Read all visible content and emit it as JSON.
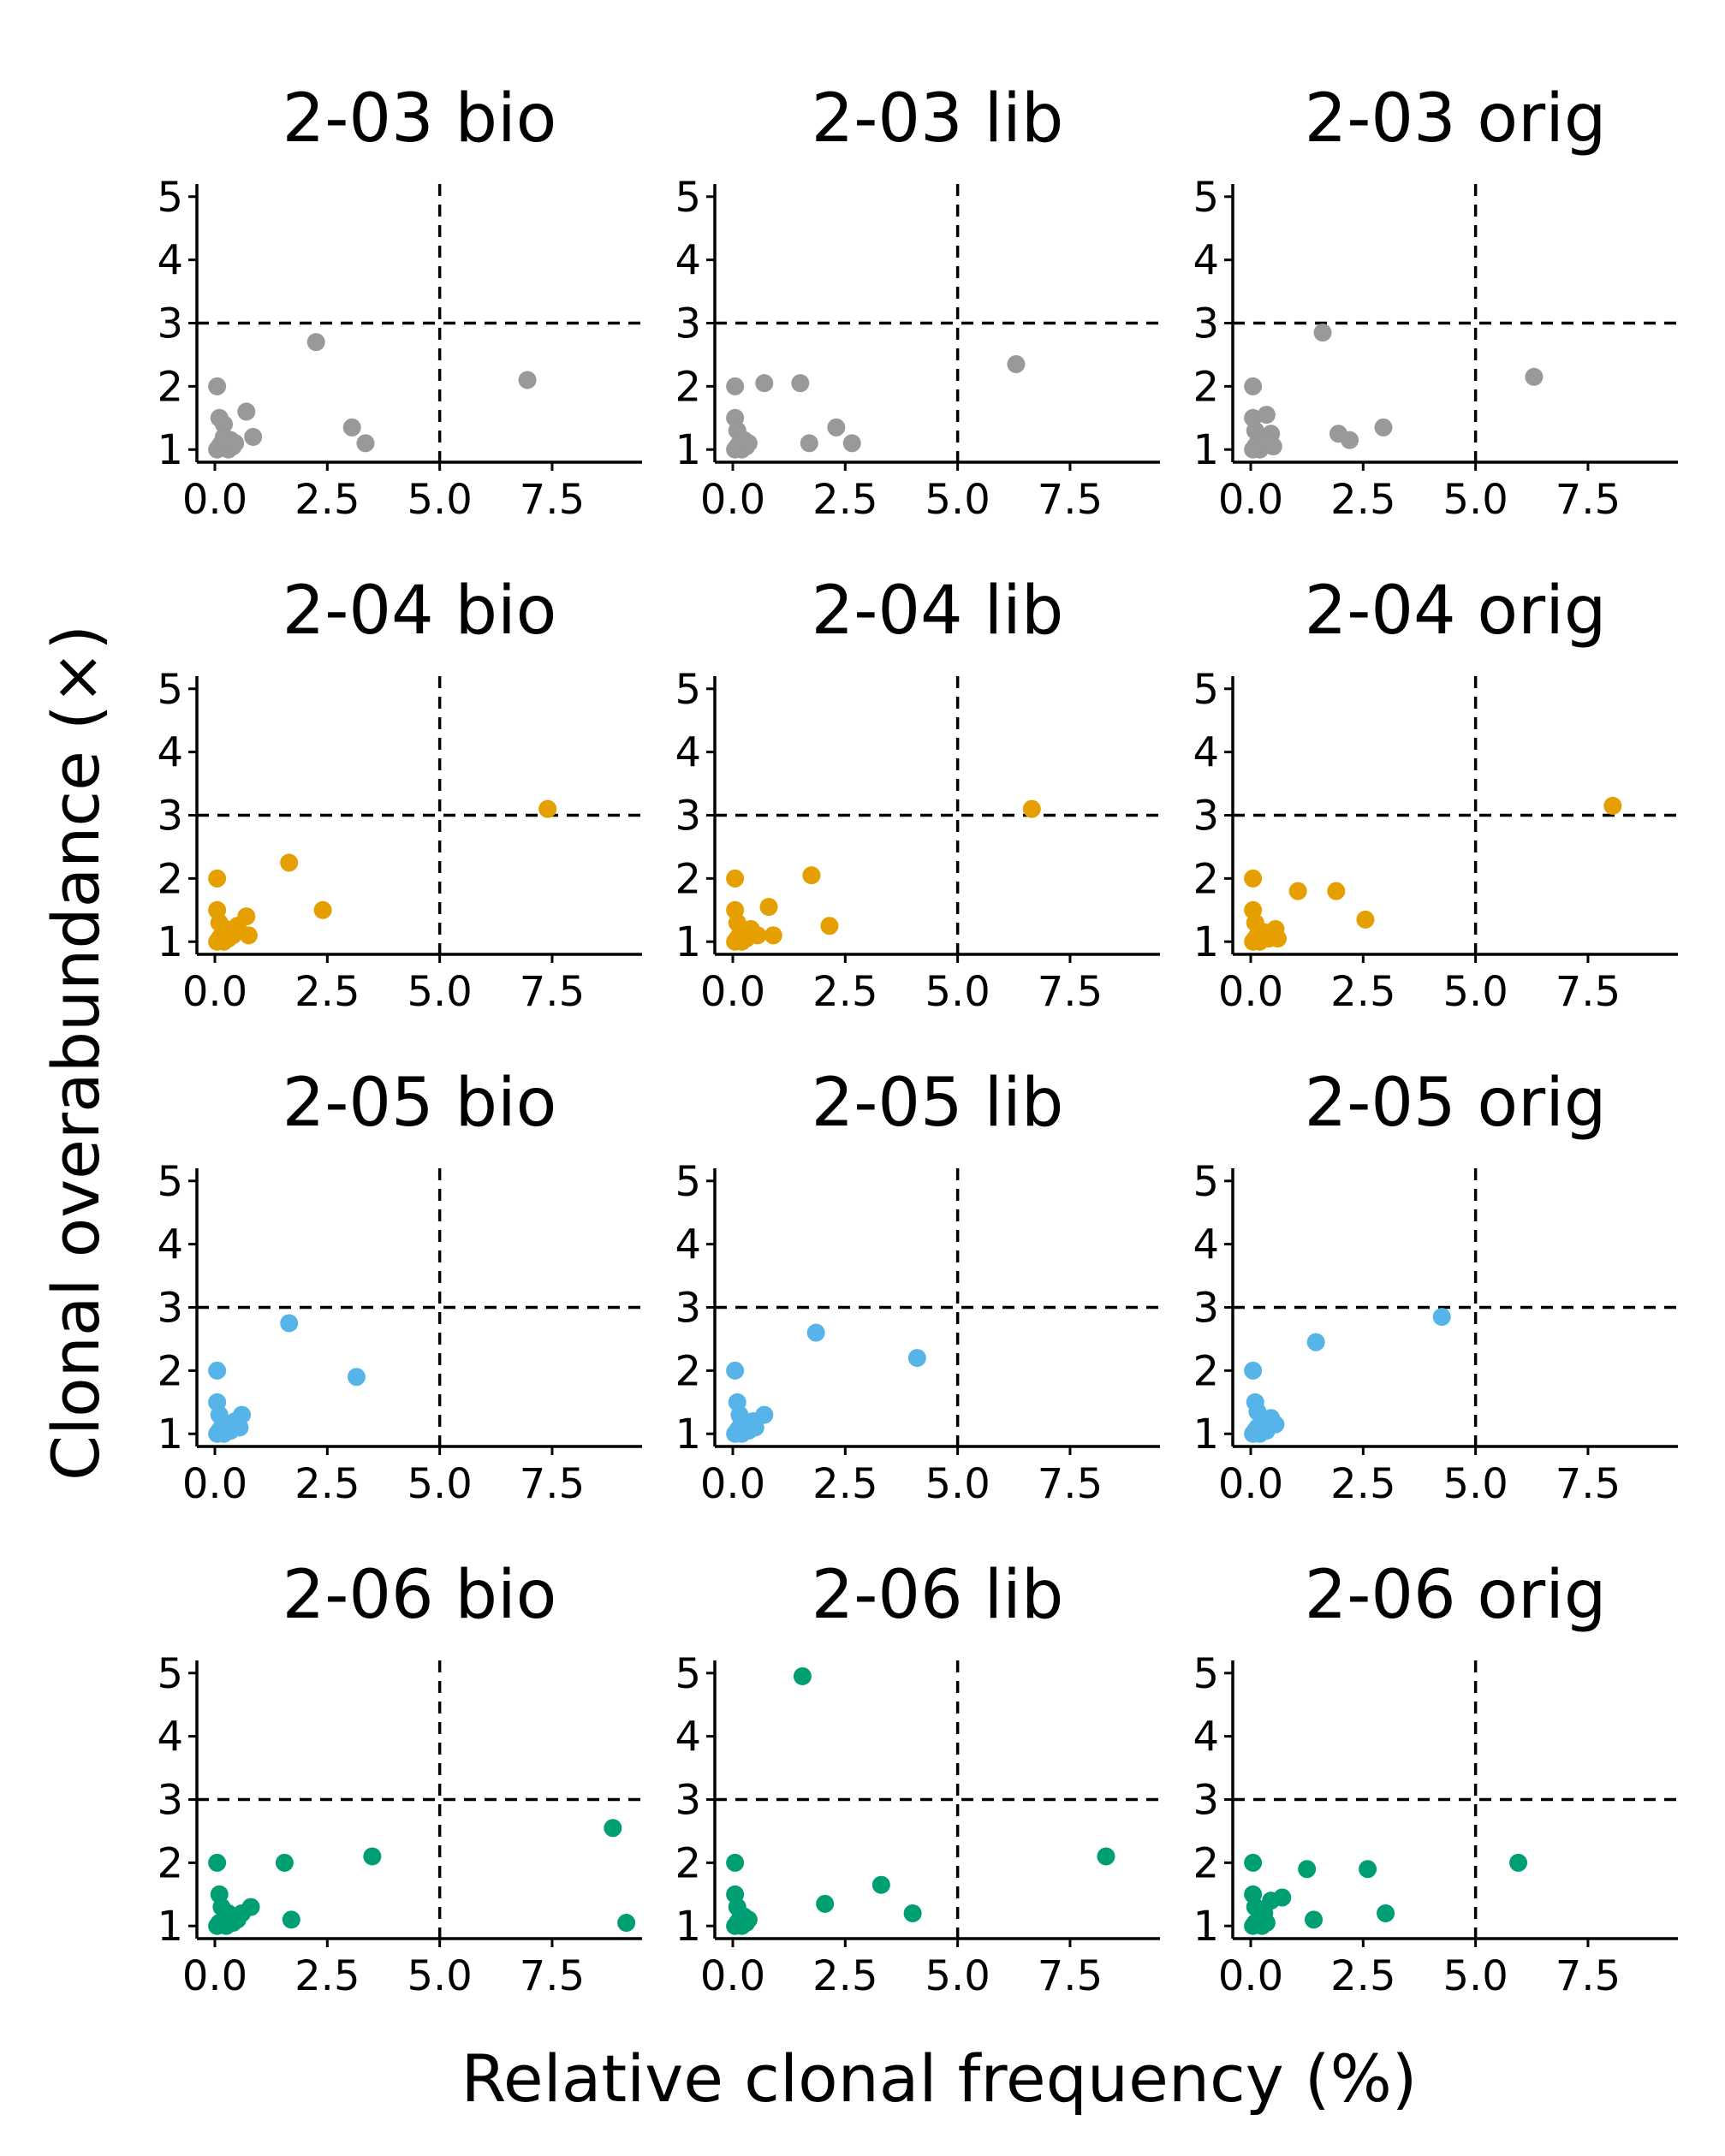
{
  "ylabel": "Clonal overabundance (×)",
  "xlabel": "Relative clonal frequency (%)",
  "chart_data": [
    {
      "type": "scatter",
      "title": "2-03 bio",
      "color": "#999999",
      "xlim": [
        -0.4,
        9.5
      ],
      "ylim": [
        0.8,
        5.2
      ],
      "xticks": [
        "0.0",
        "2.5",
        "5.0",
        "7.5"
      ],
      "yticks": [
        "1",
        "2",
        "3",
        "4",
        "5"
      ],
      "vline": 5,
      "hline": 3,
      "points": [
        [
          0.05,
          2.0
        ],
        [
          0.1,
          1.5
        ],
        [
          0.2,
          1.4
        ],
        [
          0.05,
          1.0
        ],
        [
          0.1,
          1.05
        ],
        [
          0.15,
          1.1
        ],
        [
          0.25,
          1.05
        ],
        [
          0.3,
          1.0
        ],
        [
          0.35,
          1.15
        ],
        [
          0.4,
          1.05
        ],
        [
          0.2,
          1.2
        ],
        [
          0.45,
          1.1
        ],
        [
          0.7,
          1.6
        ],
        [
          0.85,
          1.2
        ],
        [
          2.25,
          2.7
        ],
        [
          3.05,
          1.35
        ],
        [
          3.35,
          1.1
        ],
        [
          6.95,
          2.1
        ]
      ]
    },
    {
      "type": "scatter",
      "title": "2-03 lib",
      "color": "#999999",
      "xlim": [
        -0.4,
        9.5
      ],
      "ylim": [
        0.8,
        5.2
      ],
      "xticks": [
        "0.0",
        "2.5",
        "5.0",
        "7.5"
      ],
      "yticks": [
        "1",
        "2",
        "3",
        "4",
        "5"
      ],
      "vline": 5,
      "hline": 3,
      "points": [
        [
          0.05,
          2.0
        ],
        [
          0.05,
          1.5
        ],
        [
          0.1,
          1.3
        ],
        [
          0.05,
          1.0
        ],
        [
          0.1,
          1.05
        ],
        [
          0.15,
          1.1
        ],
        [
          0.2,
          1.0
        ],
        [
          0.25,
          1.15
        ],
        [
          0.3,
          1.05
        ],
        [
          0.35,
          1.1
        ],
        [
          0.7,
          2.05
        ],
        [
          1.5,
          2.05
        ],
        [
          1.7,
          1.1
        ],
        [
          2.3,
          1.35
        ],
        [
          2.65,
          1.1
        ],
        [
          6.3,
          2.35
        ]
      ]
    },
    {
      "type": "scatter",
      "title": "2-03 orig",
      "color": "#999999",
      "xlim": [
        -0.4,
        9.5
      ],
      "ylim": [
        0.8,
        5.2
      ],
      "xticks": [
        "0.0",
        "2.5",
        "5.0",
        "7.5"
      ],
      "yticks": [
        "1",
        "2",
        "3",
        "4",
        "5"
      ],
      "vline": 5,
      "hline": 3,
      "points": [
        [
          0.05,
          2.0
        ],
        [
          0.05,
          1.5
        ],
        [
          0.1,
          1.3
        ],
        [
          0.05,
          1.0
        ],
        [
          0.1,
          1.05
        ],
        [
          0.15,
          1.1
        ],
        [
          0.2,
          1.0
        ],
        [
          0.3,
          1.2
        ],
        [
          0.35,
          1.55
        ],
        [
          0.45,
          1.25
        ],
        [
          0.5,
          1.05
        ],
        [
          1.6,
          2.85
        ],
        [
          1.95,
          1.25
        ],
        [
          2.2,
          1.15
        ],
        [
          2.95,
          1.35
        ],
        [
          6.3,
          2.15
        ]
      ]
    },
    {
      "type": "scatter",
      "title": "2-04 bio",
      "color": "#E69F00",
      "xlim": [
        -0.4,
        9.5
      ],
      "ylim": [
        0.8,
        5.2
      ],
      "xticks": [
        "0.0",
        "2.5",
        "5.0",
        "7.5"
      ],
      "yticks": [
        "1",
        "2",
        "3",
        "4",
        "5"
      ],
      "vline": 5,
      "hline": 3,
      "points": [
        [
          0.05,
          2.0
        ],
        [
          0.05,
          1.5
        ],
        [
          0.1,
          1.3
        ],
        [
          0.05,
          1.0
        ],
        [
          0.1,
          1.05
        ],
        [
          0.15,
          1.1
        ],
        [
          0.2,
          1.0
        ],
        [
          0.25,
          1.2
        ],
        [
          0.3,
          1.05
        ],
        [
          0.4,
          1.1
        ],
        [
          0.5,
          1.25
        ],
        [
          0.7,
          1.4
        ],
        [
          0.75,
          1.1
        ],
        [
          1.65,
          2.25
        ],
        [
          2.4,
          1.5
        ],
        [
          7.4,
          3.1
        ]
      ]
    },
    {
      "type": "scatter",
      "title": "2-04 lib",
      "color": "#E69F00",
      "xlim": [
        -0.4,
        9.5
      ],
      "ylim": [
        0.8,
        5.2
      ],
      "xticks": [
        "0.0",
        "2.5",
        "5.0",
        "7.5"
      ],
      "yticks": [
        "1",
        "2",
        "3",
        "4",
        "5"
      ],
      "vline": 5,
      "hline": 3,
      "points": [
        [
          0.05,
          2.0
        ],
        [
          0.05,
          1.5
        ],
        [
          0.1,
          1.3
        ],
        [
          0.05,
          1.0
        ],
        [
          0.1,
          1.05
        ],
        [
          0.15,
          1.1
        ],
        [
          0.2,
          1.0
        ],
        [
          0.25,
          1.15
        ],
        [
          0.3,
          1.05
        ],
        [
          0.4,
          1.2
        ],
        [
          0.55,
          1.1
        ],
        [
          0.8,
          1.55
        ],
        [
          0.9,
          1.1
        ],
        [
          1.75,
          2.05
        ],
        [
          2.15,
          1.25
        ],
        [
          6.65,
          3.1
        ]
      ]
    },
    {
      "type": "scatter",
      "title": "2-04 orig",
      "color": "#E69F00",
      "xlim": [
        -0.4,
        9.5
      ],
      "ylim": [
        0.8,
        5.2
      ],
      "xticks": [
        "0.0",
        "2.5",
        "5.0",
        "7.5"
      ],
      "yticks": [
        "1",
        "2",
        "3",
        "4",
        "5"
      ],
      "vline": 5,
      "hline": 3,
      "points": [
        [
          0.05,
          2.0
        ],
        [
          0.05,
          1.5
        ],
        [
          0.1,
          1.3
        ],
        [
          0.05,
          1.0
        ],
        [
          0.1,
          1.05
        ],
        [
          0.15,
          1.1
        ],
        [
          0.2,
          1.0
        ],
        [
          0.3,
          1.15
        ],
        [
          0.4,
          1.05
        ],
        [
          0.55,
          1.2
        ],
        [
          0.6,
          1.05
        ],
        [
          1.05,
          1.8
        ],
        [
          1.9,
          1.8
        ],
        [
          2.55,
          1.35
        ],
        [
          8.05,
          3.15
        ]
      ]
    },
    {
      "type": "scatter",
      "title": "2-05 bio",
      "color": "#56B4E9",
      "xlim": [
        -0.4,
        9.5
      ],
      "ylim": [
        0.8,
        5.2
      ],
      "xticks": [
        "0.0",
        "2.5",
        "5.0",
        "7.5"
      ],
      "yticks": [
        "1",
        "2",
        "3",
        "4",
        "5"
      ],
      "vline": 5,
      "hline": 3,
      "points": [
        [
          0.05,
          2.0
        ],
        [
          0.05,
          1.5
        ],
        [
          0.1,
          1.3
        ],
        [
          0.05,
          1.0
        ],
        [
          0.1,
          1.05
        ],
        [
          0.15,
          1.1
        ],
        [
          0.2,
          1.0
        ],
        [
          0.25,
          1.15
        ],
        [
          0.35,
          1.05
        ],
        [
          0.45,
          1.2
        ],
        [
          0.55,
          1.1
        ],
        [
          0.6,
          1.3
        ],
        [
          1.65,
          2.75
        ],
        [
          3.15,
          1.9
        ]
      ]
    },
    {
      "type": "scatter",
      "title": "2-05 lib",
      "color": "#56B4E9",
      "xlim": [
        -0.4,
        9.5
      ],
      "ylim": [
        0.8,
        5.2
      ],
      "xticks": [
        "0.0",
        "2.5",
        "5.0",
        "7.5"
      ],
      "yticks": [
        "1",
        "2",
        "3",
        "4",
        "5"
      ],
      "vline": 5,
      "hline": 3,
      "points": [
        [
          0.05,
          2.0
        ],
        [
          0.1,
          1.5
        ],
        [
          0.15,
          1.3
        ],
        [
          0.05,
          1.0
        ],
        [
          0.1,
          1.05
        ],
        [
          0.15,
          1.1
        ],
        [
          0.2,
          1.0
        ],
        [
          0.3,
          1.15
        ],
        [
          0.35,
          1.05
        ],
        [
          0.45,
          1.2
        ],
        [
          0.5,
          1.1
        ],
        [
          0.7,
          1.3
        ],
        [
          1.85,
          2.6
        ],
        [
          4.1,
          2.2
        ]
      ]
    },
    {
      "type": "scatter",
      "title": "2-05 orig",
      "color": "#56B4E9",
      "xlim": [
        -0.4,
        9.5
      ],
      "ylim": [
        0.8,
        5.2
      ],
      "xticks": [
        "0.0",
        "2.5",
        "5.0",
        "7.5"
      ],
      "yticks": [
        "1",
        "2",
        "3",
        "4",
        "5"
      ],
      "vline": 5,
      "hline": 3,
      "points": [
        [
          0.05,
          2.0
        ],
        [
          0.1,
          1.5
        ],
        [
          0.15,
          1.35
        ],
        [
          0.05,
          1.0
        ],
        [
          0.1,
          1.05
        ],
        [
          0.15,
          1.1
        ],
        [
          0.2,
          1.0
        ],
        [
          0.3,
          1.15
        ],
        [
          0.35,
          1.05
        ],
        [
          0.45,
          1.25
        ],
        [
          0.55,
          1.15
        ],
        [
          1.45,
          2.45
        ],
        [
          4.25,
          2.85
        ]
      ]
    },
    {
      "type": "scatter",
      "title": "2-06 bio",
      "color": "#009E73",
      "xlim": [
        -0.4,
        9.5
      ],
      "ylim": [
        0.8,
        5.2
      ],
      "xticks": [
        "0.0",
        "2.5",
        "5.0",
        "7.5"
      ],
      "yticks": [
        "1",
        "2",
        "3",
        "4",
        "5"
      ],
      "vline": 5,
      "hline": 3,
      "points": [
        [
          0.05,
          2.0
        ],
        [
          0.1,
          1.5
        ],
        [
          0.15,
          1.3
        ],
        [
          0.05,
          1.0
        ],
        [
          0.1,
          1.05
        ],
        [
          0.2,
          1.1
        ],
        [
          0.25,
          1.0
        ],
        [
          0.3,
          1.2
        ],
        [
          0.4,
          1.05
        ],
        [
          0.5,
          1.1
        ],
        [
          0.6,
          1.2
        ],
        [
          0.8,
          1.3
        ],
        [
          1.55,
          2.0
        ],
        [
          1.7,
          1.1
        ],
        [
          3.5,
          2.1
        ],
        [
          8.85,
          2.55
        ],
        [
          9.15,
          1.05
        ]
      ]
    },
    {
      "type": "scatter",
      "title": "2-06 lib",
      "color": "#009E73",
      "xlim": [
        -0.4,
        9.5
      ],
      "ylim": [
        0.8,
        5.2
      ],
      "xticks": [
        "0.0",
        "2.5",
        "5.0",
        "7.5"
      ],
      "yticks": [
        "1",
        "2",
        "3",
        "4",
        "5"
      ],
      "vline": 5,
      "hline": 3,
      "points": [
        [
          0.05,
          2.0
        ],
        [
          0.05,
          1.5
        ],
        [
          0.1,
          1.3
        ],
        [
          0.05,
          1.0
        ],
        [
          0.1,
          1.05
        ],
        [
          0.15,
          1.1
        ],
        [
          0.2,
          1.0
        ],
        [
          0.25,
          1.15
        ],
        [
          0.3,
          1.05
        ],
        [
          0.35,
          1.1
        ],
        [
          1.55,
          4.95
        ],
        [
          2.05,
          1.35
        ],
        [
          3.3,
          1.65
        ],
        [
          4.0,
          1.2
        ],
        [
          8.3,
          2.1
        ]
      ]
    },
    {
      "type": "scatter",
      "title": "2-06 orig",
      "color": "#009E73",
      "xlim": [
        -0.4,
        9.5
      ],
      "ylim": [
        0.8,
        5.2
      ],
      "xticks": [
        "0.0",
        "2.5",
        "5.0",
        "7.5"
      ],
      "yticks": [
        "1",
        "2",
        "3",
        "4",
        "5"
      ],
      "vline": 5,
      "hline": 3,
      "points": [
        [
          0.05,
          2.0
        ],
        [
          0.05,
          1.5
        ],
        [
          0.1,
          1.3
        ],
        [
          0.05,
          1.0
        ],
        [
          0.1,
          1.05
        ],
        [
          0.2,
          1.1
        ],
        [
          0.25,
          1.0
        ],
        [
          0.3,
          1.2
        ],
        [
          0.35,
          1.05
        ],
        [
          0.45,
          1.4
        ],
        [
          0.7,
          1.45
        ],
        [
          1.25,
          1.9
        ],
        [
          1.4,
          1.1
        ],
        [
          2.6,
          1.9
        ],
        [
          3.0,
          1.2
        ],
        [
          5.95,
          2.0
        ]
      ]
    }
  ]
}
